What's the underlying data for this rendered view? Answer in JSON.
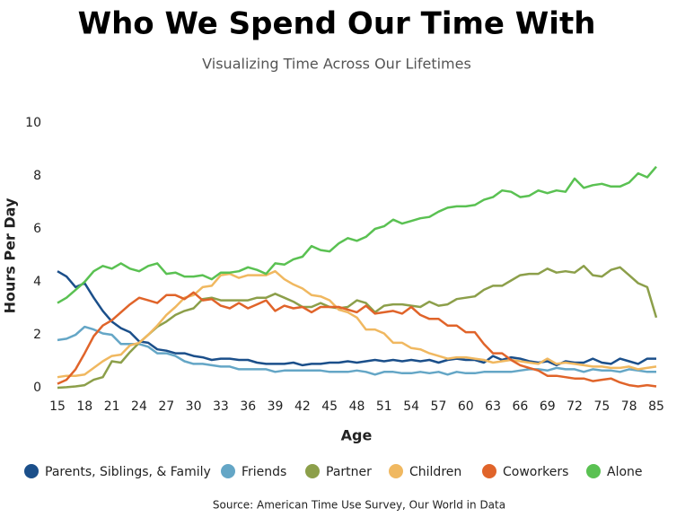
{
  "chart_data": {
    "type": "line",
    "title": "Who We Spend Our Time With",
    "subtitle": "Visualizing Time Across Our Lifetimes",
    "xlabel": "Age",
    "ylabel": "Hours Per Day",
    "source": "Source: American Time Use Survey, Our World in Data",
    "categories": [
      15,
      null,
      null,
      18,
      null,
      null,
      21,
      null,
      null,
      24,
      null,
      null,
      27,
      null,
      null,
      30,
      null,
      null,
      33,
      null,
      null,
      36,
      null,
      null,
      39,
      null,
      null,
      42,
      null,
      null,
      45,
      null,
      null,
      48,
      null,
      null,
      51,
      null,
      null,
      54,
      null,
      null,
      57,
      null,
      null,
      60,
      null,
      null,
      63,
      null,
      null,
      66,
      null,
      null,
      69,
      null,
      null,
      72,
      null,
      null,
      75,
      null,
      null,
      78,
      null,
      null,
      85
    ],
    "ylim": [
      0,
      10
    ],
    "yticks": [
      0,
      2,
      4,
      6,
      8,
      10
    ],
    "grid": false,
    "legend": "bottom",
    "series": [
      {
        "name": "Parents, Siblings, & Family",
        "color": "#1b4f8a",
        "values": [
          4.4,
          4.2,
          3.8,
          3.95,
          3.4,
          2.9,
          2.5,
          2.25,
          2.1,
          1.75,
          1.7,
          1.45,
          1.4,
          1.3,
          1.3,
          1.2,
          1.15,
          1.05,
          1.1,
          1.1,
          1.05,
          1.05,
          0.95,
          0.9,
          0.9,
          0.9,
          0.95,
          0.85,
          0.9,
          0.9,
          0.95,
          0.95,
          1.0,
          0.95,
          1.0,
          1.05,
          1.0,
          1.05,
          1.0,
          1.05,
          1.0,
          1.05,
          0.95,
          1.05,
          1.1,
          1.05,
          1.05,
          0.95,
          1.2,
          1.05,
          1.15,
          1.1,
          1.0,
          0.95,
          1.0,
          0.85,
          1.0,
          0.95,
          0.95,
          1.1,
          0.95,
          0.9,
          1.1,
          1.0,
          0.9,
          1.1,
          1.1
        ]
      },
      {
        "name": "Friends",
        "color": "#64a6c6",
        "values": [
          1.8,
          1.85,
          2.0,
          2.3,
          2.2,
          2.05,
          2.0,
          1.65,
          1.65,
          1.65,
          1.55,
          1.3,
          1.3,
          1.2,
          1.0,
          0.9,
          0.9,
          0.85,
          0.8,
          0.8,
          0.7,
          0.7,
          0.7,
          0.7,
          0.6,
          0.65,
          0.65,
          0.65,
          0.65,
          0.65,
          0.6,
          0.6,
          0.6,
          0.65,
          0.6,
          0.5,
          0.6,
          0.6,
          0.55,
          0.55,
          0.6,
          0.55,
          0.6,
          0.5,
          0.6,
          0.55,
          0.55,
          0.6,
          0.6,
          0.6,
          0.6,
          0.65,
          0.7,
          0.7,
          0.65,
          0.75,
          0.7,
          0.7,
          0.6,
          0.7,
          0.65,
          0.65,
          0.6,
          0.7,
          0.65,
          0.6,
          0.6
        ]
      },
      {
        "name": "Partner",
        "color": "#8c9f4a",
        "values": [
          0.0,
          0.02,
          0.05,
          0.1,
          0.3,
          0.4,
          1.0,
          0.95,
          1.35,
          1.7,
          2.0,
          2.3,
          2.5,
          2.75,
          2.9,
          3.0,
          3.35,
          3.4,
          3.3,
          3.3,
          3.3,
          3.3,
          3.4,
          3.4,
          3.55,
          3.4,
          3.25,
          3.05,
          3.05,
          3.2,
          3.05,
          3.0,
          3.05,
          3.3,
          3.2,
          2.85,
          3.1,
          3.15,
          3.15,
          3.1,
          3.05,
          3.25,
          3.1,
          3.15,
          3.35,
          3.4,
          3.45,
          3.7,
          3.85,
          3.85,
          4.05,
          4.25,
          4.3,
          4.3,
          4.5,
          4.35,
          4.4,
          4.35,
          4.6,
          4.25,
          4.2,
          4.45,
          4.55,
          4.25,
          3.95,
          3.8,
          2.65
        ]
      },
      {
        "name": "Children",
        "color": "#f0b860",
        "values": [
          0.4,
          0.45,
          0.45,
          0.5,
          0.75,
          1.0,
          1.2,
          1.25,
          1.6,
          1.7,
          2.0,
          2.35,
          2.75,
          3.05,
          3.4,
          3.5,
          3.8,
          3.85,
          4.25,
          4.3,
          4.15,
          4.25,
          4.25,
          4.25,
          4.4,
          4.1,
          3.9,
          3.75,
          3.5,
          3.45,
          3.3,
          2.95,
          2.85,
          2.65,
          2.2,
          2.2,
          2.05,
          1.7,
          1.7,
          1.5,
          1.45,
          1.3,
          1.2,
          1.1,
          1.15,
          1.15,
          1.1,
          1.05,
          0.95,
          1.0,
          1.05,
          1.0,
          0.95,
          0.9,
          1.1,
          0.9,
          0.95,
          0.9,
          0.85,
          0.8,
          0.8,
          0.75,
          0.75,
          0.8,
          0.7,
          0.75,
          0.8
        ]
      },
      {
        "name": "Coworkers",
        "color": "#e0642a",
        "values": [
          0.15,
          0.3,
          0.7,
          1.3,
          1.95,
          2.35,
          2.55,
          2.85,
          3.15,
          3.4,
          3.3,
          3.2,
          3.5,
          3.5,
          3.35,
          3.6,
          3.3,
          3.35,
          3.1,
          3.0,
          3.2,
          3.0,
          3.15,
          3.3,
          2.9,
          3.1,
          3.0,
          3.05,
          2.85,
          3.05,
          3.05,
          3.05,
          2.95,
          2.85,
          3.1,
          2.8,
          2.85,
          2.9,
          2.8,
          3.05,
          2.75,
          2.6,
          2.6,
          2.35,
          2.35,
          2.1,
          2.1,
          1.65,
          1.3,
          1.3,
          1.05,
          0.85,
          0.75,
          0.65,
          0.45,
          0.45,
          0.4,
          0.35,
          0.35,
          0.25,
          0.3,
          0.35,
          0.2,
          0.1,
          0.05,
          0.1,
          0.05
        ]
      },
      {
        "name": "Alone",
        "color": "#5ac152",
        "values": [
          3.2,
          3.4,
          3.7,
          4.0,
          4.4,
          4.6,
          4.5,
          4.7,
          4.5,
          4.4,
          4.6,
          4.7,
          4.3,
          4.35,
          4.2,
          4.2,
          4.25,
          4.1,
          4.35,
          4.35,
          4.4,
          4.55,
          4.45,
          4.3,
          4.7,
          4.65,
          4.85,
          4.95,
          5.35,
          5.2,
          5.15,
          5.45,
          5.65,
          5.55,
          5.7,
          6.0,
          6.1,
          6.35,
          6.2,
          6.3,
          6.4,
          6.45,
          6.65,
          6.8,
          6.85,
          6.85,
          6.9,
          7.1,
          7.2,
          7.45,
          7.4,
          7.2,
          7.25,
          7.45,
          7.35,
          7.45,
          7.4,
          7.9,
          7.55,
          7.65,
          7.7,
          7.6,
          7.6,
          7.75,
          8.1,
          7.95,
          8.35
        ]
      }
    ]
  }
}
